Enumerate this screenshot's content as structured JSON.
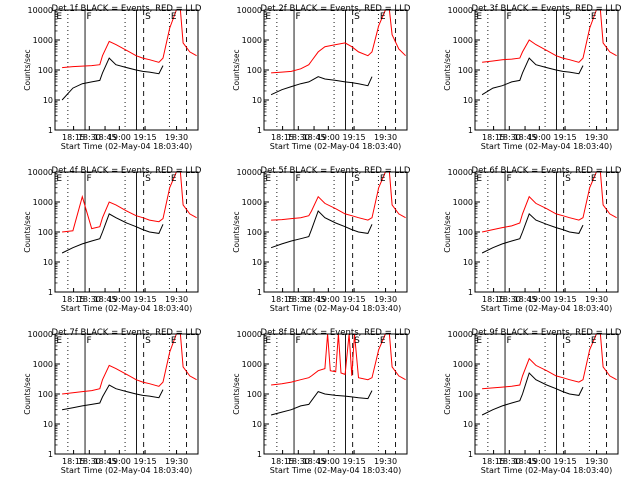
{
  "chart_data": [
    {
      "type": "line",
      "title": "Det 1f BLACK = Events, RED = LLD",
      "xlabel": "Start Time (02-May-04 18:03:40)",
      "ylabel": "Counts/sec",
      "yscale": "log",
      "ylim": [
        1,
        10000
      ],
      "xticks": [
        "18:15",
        "18:30",
        "18:45",
        "19:00",
        "19:15",
        "19:30"
      ],
      "yticks": [
        "1",
        "10",
        "100",
        "1000",
        "10000"
      ],
      "markers": [
        "E",
        "F",
        "S",
        "E"
      ],
      "series": [
        {
          "color": "#000000",
          "x": [
            0.0,
            0.08,
            0.15,
            0.22,
            0.28,
            0.3,
            0.35,
            0.4,
            0.48,
            0.55,
            0.6,
            0.65,
            0.72,
            0.75
          ],
          "y": [
            10,
            25,
            35,
            40,
            45,
            80,
            250,
            150,
            120,
            100,
            90,
            85,
            75,
            140
          ]
        },
        {
          "color": "#ff0000",
          "x": [
            0.0,
            0.08,
            0.15,
            0.22,
            0.28,
            0.3,
            0.35,
            0.4,
            0.48,
            0.55,
            0.6,
            0.65,
            0.72,
            0.75,
            0.8,
            0.85,
            0.88,
            0.9,
            0.95,
            1.0
          ],
          "y": [
            120,
            130,
            135,
            140,
            150,
            300,
            900,
            700,
            450,
            300,
            250,
            220,
            180,
            250,
            2500,
            10000,
            10000,
            800,
            400,
            300
          ]
        }
      ]
    },
    {
      "type": "line",
      "title": "Det 2f BLACK = Events, RED = LLD",
      "xlabel": "Start Time (02-May-04 18:03:40)",
      "ylabel": "Counts/sec",
      "yscale": "log",
      "ylim": [
        1,
        10000
      ],
      "xticks": [
        "18:15",
        "18:30",
        "18:45",
        "19:00",
        "19:15",
        "19:30"
      ],
      "yticks": [
        "1",
        "10",
        "100",
        "1000",
        "10000"
      ],
      "markers": [
        "E",
        "F",
        "S",
        "E"
      ],
      "series": [
        {
          "color": "#000000",
          "x": [
            0.0,
            0.08,
            0.15,
            0.22,
            0.28,
            0.3,
            0.35,
            0.4,
            0.48,
            0.55,
            0.6,
            0.65,
            0.72,
            0.75
          ],
          "y": [
            15,
            22,
            28,
            35,
            40,
            45,
            60,
            50,
            45,
            40,
            38,
            35,
            30,
            60
          ]
        },
        {
          "color": "#ff0000",
          "x": [
            0.0,
            0.08,
            0.15,
            0.22,
            0.28,
            0.3,
            0.35,
            0.4,
            0.48,
            0.55,
            0.6,
            0.65,
            0.72,
            0.75,
            0.8,
            0.85,
            0.88,
            0.9,
            0.95,
            1.0
          ],
          "y": [
            80,
            85,
            90,
            110,
            150,
            200,
            400,
            600,
            700,
            800,
            600,
            400,
            300,
            400,
            3000,
            10000,
            10000,
            1500,
            500,
            300
          ]
        }
      ]
    },
    {
      "type": "line",
      "title": "Det 3f BLACK = Events, RED = LLD",
      "xlabel": "Start Time (02-May-04 18:03:40)",
      "ylabel": "Counts/sec",
      "yscale": "log",
      "ylim": [
        1,
        10000
      ],
      "xticks": [
        "18:15",
        "18:30",
        "18:45",
        "19:00",
        "19:15",
        "19:30"
      ],
      "yticks": [
        "1",
        "10",
        "100",
        "1000",
        "10000"
      ],
      "markers": [
        "E",
        "F",
        "S",
        "E"
      ],
      "series": [
        {
          "color": "#000000",
          "x": [
            0.0,
            0.08,
            0.15,
            0.22,
            0.28,
            0.3,
            0.35,
            0.4,
            0.48,
            0.55,
            0.6,
            0.65,
            0.72,
            0.75
          ],
          "y": [
            15,
            25,
            30,
            40,
            45,
            80,
            250,
            150,
            120,
            100,
            90,
            85,
            75,
            140
          ]
        },
        {
          "color": "#ff0000",
          "x": [
            0.0,
            0.08,
            0.15,
            0.22,
            0.28,
            0.3,
            0.35,
            0.4,
            0.48,
            0.55,
            0.6,
            0.65,
            0.72,
            0.75,
            0.8,
            0.85,
            0.88,
            0.9,
            0.95,
            1.0
          ],
          "y": [
            180,
            200,
            220,
            230,
            250,
            400,
            1000,
            700,
            450,
            300,
            250,
            220,
            180,
            250,
            2500,
            10000,
            10000,
            800,
            400,
            300
          ]
        }
      ]
    },
    {
      "type": "line",
      "title": "Det 4f BLACK = Events, RED = LLD",
      "xlabel": "Start Time (02-May-04 18:03:40)",
      "ylabel": "Counts/sec",
      "yscale": "log",
      "ylim": [
        1,
        10000
      ],
      "xticks": [
        "18:15",
        "18:30",
        "18:45",
        "19:00",
        "19:15",
        "19:30"
      ],
      "yticks": [
        "1",
        "10",
        "100",
        "1000",
        "10000"
      ],
      "markers": [
        "E",
        "F",
        "S",
        "E"
      ],
      "series": [
        {
          "color": "#000000",
          "x": [
            0.0,
            0.08,
            0.15,
            0.22,
            0.28,
            0.3,
            0.35,
            0.4,
            0.48,
            0.55,
            0.6,
            0.65,
            0.72,
            0.75
          ],
          "y": [
            20,
            30,
            40,
            50,
            60,
            100,
            400,
            300,
            200,
            150,
            120,
            100,
            90,
            180
          ]
        },
        {
          "color": "#ff0000",
          "x": [
            0.0,
            0.08,
            0.15,
            0.22,
            0.28,
            0.3,
            0.35,
            0.4,
            0.48,
            0.55,
            0.6,
            0.65,
            0.72,
            0.75,
            0.8,
            0.85,
            0.88,
            0.9,
            0.95,
            1.0
          ],
          "y": [
            100,
            110,
            1500,
            130,
            150,
            300,
            1000,
            800,
            500,
            350,
            300,
            250,
            220,
            280,
            3000,
            10000,
            10000,
            800,
            400,
            300
          ]
        }
      ]
    },
    {
      "type": "line",
      "title": "Det 5f BLACK = Events, RED = LLD",
      "xlabel": "Start Time (02-May-04 18:03:40)",
      "ylabel": "Counts/sec",
      "yscale": "log",
      "ylim": [
        1,
        10000
      ],
      "xticks": [
        "18:15",
        "18:30",
        "18:45",
        "19:00",
        "19:15",
        "19:30"
      ],
      "yticks": [
        "1",
        "10",
        "100",
        "1000",
        "10000"
      ],
      "markers": [
        "E",
        "F",
        "S",
        "E"
      ],
      "series": [
        {
          "color": "#000000",
          "x": [
            0.0,
            0.08,
            0.15,
            0.22,
            0.28,
            0.3,
            0.35,
            0.4,
            0.48,
            0.55,
            0.6,
            0.65,
            0.72,
            0.75
          ],
          "y": [
            30,
            40,
            50,
            60,
            70,
            120,
            500,
            300,
            200,
            150,
            120,
            100,
            90,
            180
          ]
        },
        {
          "color": "#ff0000",
          "x": [
            0.0,
            0.08,
            0.15,
            0.22,
            0.28,
            0.3,
            0.35,
            0.4,
            0.48,
            0.55,
            0.6,
            0.65,
            0.72,
            0.75,
            0.8,
            0.85,
            0.88,
            0.9,
            0.95,
            1.0
          ],
          "y": [
            250,
            260,
            280,
            300,
            350,
            500,
            1500,
            900,
            600,
            400,
            350,
            300,
            250,
            300,
            3000,
            10000,
            10000,
            800,
            400,
            300
          ]
        }
      ]
    },
    {
      "type": "line",
      "title": "Det 6f BLACK = Events, RED = LLD",
      "xlabel": "Start Time (02-May-04 18:03:40)",
      "ylabel": "Counts/sec",
      "yscale": "log",
      "ylim": [
        1,
        10000
      ],
      "xticks": [
        "18:15",
        "18:30",
        "18:45",
        "19:00",
        "19:15",
        "19:30"
      ],
      "yticks": [
        "1",
        "10",
        "100",
        "1000",
        "10000"
      ],
      "markers": [
        "E",
        "F",
        "S",
        "E"
      ],
      "series": [
        {
          "color": "#000000",
          "x": [
            0.0,
            0.08,
            0.15,
            0.22,
            0.28,
            0.3,
            0.35,
            0.4,
            0.48,
            0.55,
            0.6,
            0.65,
            0.72,
            0.75
          ],
          "y": [
            20,
            30,
            40,
            50,
            60,
            100,
            400,
            250,
            180,
            140,
            120,
            100,
            90,
            170
          ]
        },
        {
          "color": "#ff0000",
          "x": [
            0.0,
            0.08,
            0.15,
            0.22,
            0.28,
            0.3,
            0.35,
            0.4,
            0.48,
            0.55,
            0.6,
            0.65,
            0.72,
            0.75,
            0.8,
            0.85,
            0.88,
            0.9,
            0.95,
            1.0
          ],
          "y": [
            100,
            120,
            140,
            160,
            200,
            400,
            1500,
            900,
            600,
            400,
            350,
            300,
            250,
            300,
            3000,
            10000,
            10000,
            800,
            400,
            300
          ]
        }
      ]
    },
    {
      "type": "line",
      "title": "Det 7f BLACK = Events, RED = LLD",
      "xlabel": "Start Time (02-May-04 18:03:40)",
      "ylabel": "Counts/sec",
      "yscale": "log",
      "ylim": [
        1,
        10000
      ],
      "xticks": [
        "18:15",
        "18:30",
        "18:45",
        "19:00",
        "19:15",
        "19:30"
      ],
      "yticks": [
        "1",
        "10",
        "100",
        "1000",
        "10000"
      ],
      "markers": [
        "E",
        "F",
        "S",
        "E"
      ],
      "series": [
        {
          "color": "#000000",
          "x": [
            0.0,
            0.08,
            0.15,
            0.22,
            0.28,
            0.3,
            0.35,
            0.4,
            0.48,
            0.55,
            0.6,
            0.65,
            0.72,
            0.75
          ],
          "y": [
            30,
            35,
            40,
            45,
            50,
            80,
            200,
            150,
            120,
            100,
            90,
            85,
            75,
            140
          ]
        },
        {
          "color": "#ff0000",
          "x": [
            0.0,
            0.08,
            0.15,
            0.22,
            0.28,
            0.3,
            0.35,
            0.4,
            0.48,
            0.55,
            0.6,
            0.65,
            0.72,
            0.75,
            0.8,
            0.85,
            0.88,
            0.9,
            0.95,
            1.0
          ],
          "y": [
            100,
            110,
            120,
            130,
            150,
            300,
            900,
            700,
            450,
            300,
            250,
            220,
            180,
            250,
            2500,
            10000,
            10000,
            800,
            400,
            300
          ]
        }
      ]
    },
    {
      "type": "line",
      "title": "Det 8f BLACK = Events, RED = LLD",
      "xlabel": "Start Time (02-May-04 18:03:40)",
      "ylabel": "Counts/sec",
      "yscale": "log",
      "ylim": [
        1,
        10000
      ],
      "xticks": [
        "18:15",
        "18:30",
        "18:45",
        "19:00",
        "19:15",
        "19:30"
      ],
      "yticks": [
        "1",
        "10",
        "100",
        "1000",
        "10000"
      ],
      "markers": [
        "E",
        "F",
        "S",
        "E"
      ],
      "series": [
        {
          "color": "#000000",
          "x": [
            0.0,
            0.08,
            0.15,
            0.22,
            0.28,
            0.3,
            0.35,
            0.4,
            0.48,
            0.55,
            0.6,
            0.65,
            0.72,
            0.75
          ],
          "y": [
            20,
            25,
            30,
            40,
            45,
            60,
            120,
            100,
            90,
            85,
            80,
            75,
            70,
            130
          ]
        },
        {
          "color": "#ff0000",
          "x": [
            0.0,
            0.08,
            0.15,
            0.22,
            0.28,
            0.3,
            0.35,
            0.4,
            0.42,
            0.44,
            0.48,
            0.5,
            0.52,
            0.55,
            0.58,
            0.6,
            0.62,
            0.65,
            0.72,
            0.75,
            0.8,
            0.85,
            0.88,
            0.9,
            0.95,
            1.0
          ],
          "y": [
            200,
            220,
            250,
            300,
            350,
            400,
            600,
            700,
            10000,
            600,
            550,
            10000,
            500,
            450,
            10000,
            400,
            10000,
            350,
            300,
            350,
            3000,
            10000,
            10000,
            800,
            400,
            300
          ]
        }
      ]
    },
    {
      "type": "line",
      "title": "Det 9f BLACK = Events, RED = LLD",
      "xlabel": "Start Time (02-May-04 18:03:40)",
      "ylabel": "Counts/sec",
      "yscale": "log",
      "ylim": [
        1,
        10000
      ],
      "xticks": [
        "18:15",
        "18:30",
        "18:45",
        "19:00",
        "19:15",
        "19:30"
      ],
      "yticks": [
        "1",
        "10",
        "100",
        "1000",
        "10000"
      ],
      "markers": [
        "E",
        "F",
        "S",
        "E"
      ],
      "series": [
        {
          "color": "#000000",
          "x": [
            0.0,
            0.08,
            0.15,
            0.22,
            0.28,
            0.3,
            0.35,
            0.4,
            0.48,
            0.55,
            0.6,
            0.65,
            0.72,
            0.75
          ],
          "y": [
            20,
            30,
            40,
            50,
            60,
            100,
            500,
            300,
            200,
            150,
            120,
            100,
            90,
            170
          ]
        },
        {
          "color": "#ff0000",
          "x": [
            0.0,
            0.08,
            0.15,
            0.22,
            0.28,
            0.3,
            0.35,
            0.4,
            0.48,
            0.55,
            0.6,
            0.65,
            0.72,
            0.75,
            0.8,
            0.85,
            0.88,
            0.9,
            0.95,
            1.0
          ],
          "y": [
            150,
            160,
            170,
            180,
            200,
            400,
            1500,
            900,
            600,
            400,
            350,
            300,
            250,
            300,
            3000,
            10000,
            10000,
            800,
            400,
            300
          ]
        }
      ]
    }
  ]
}
